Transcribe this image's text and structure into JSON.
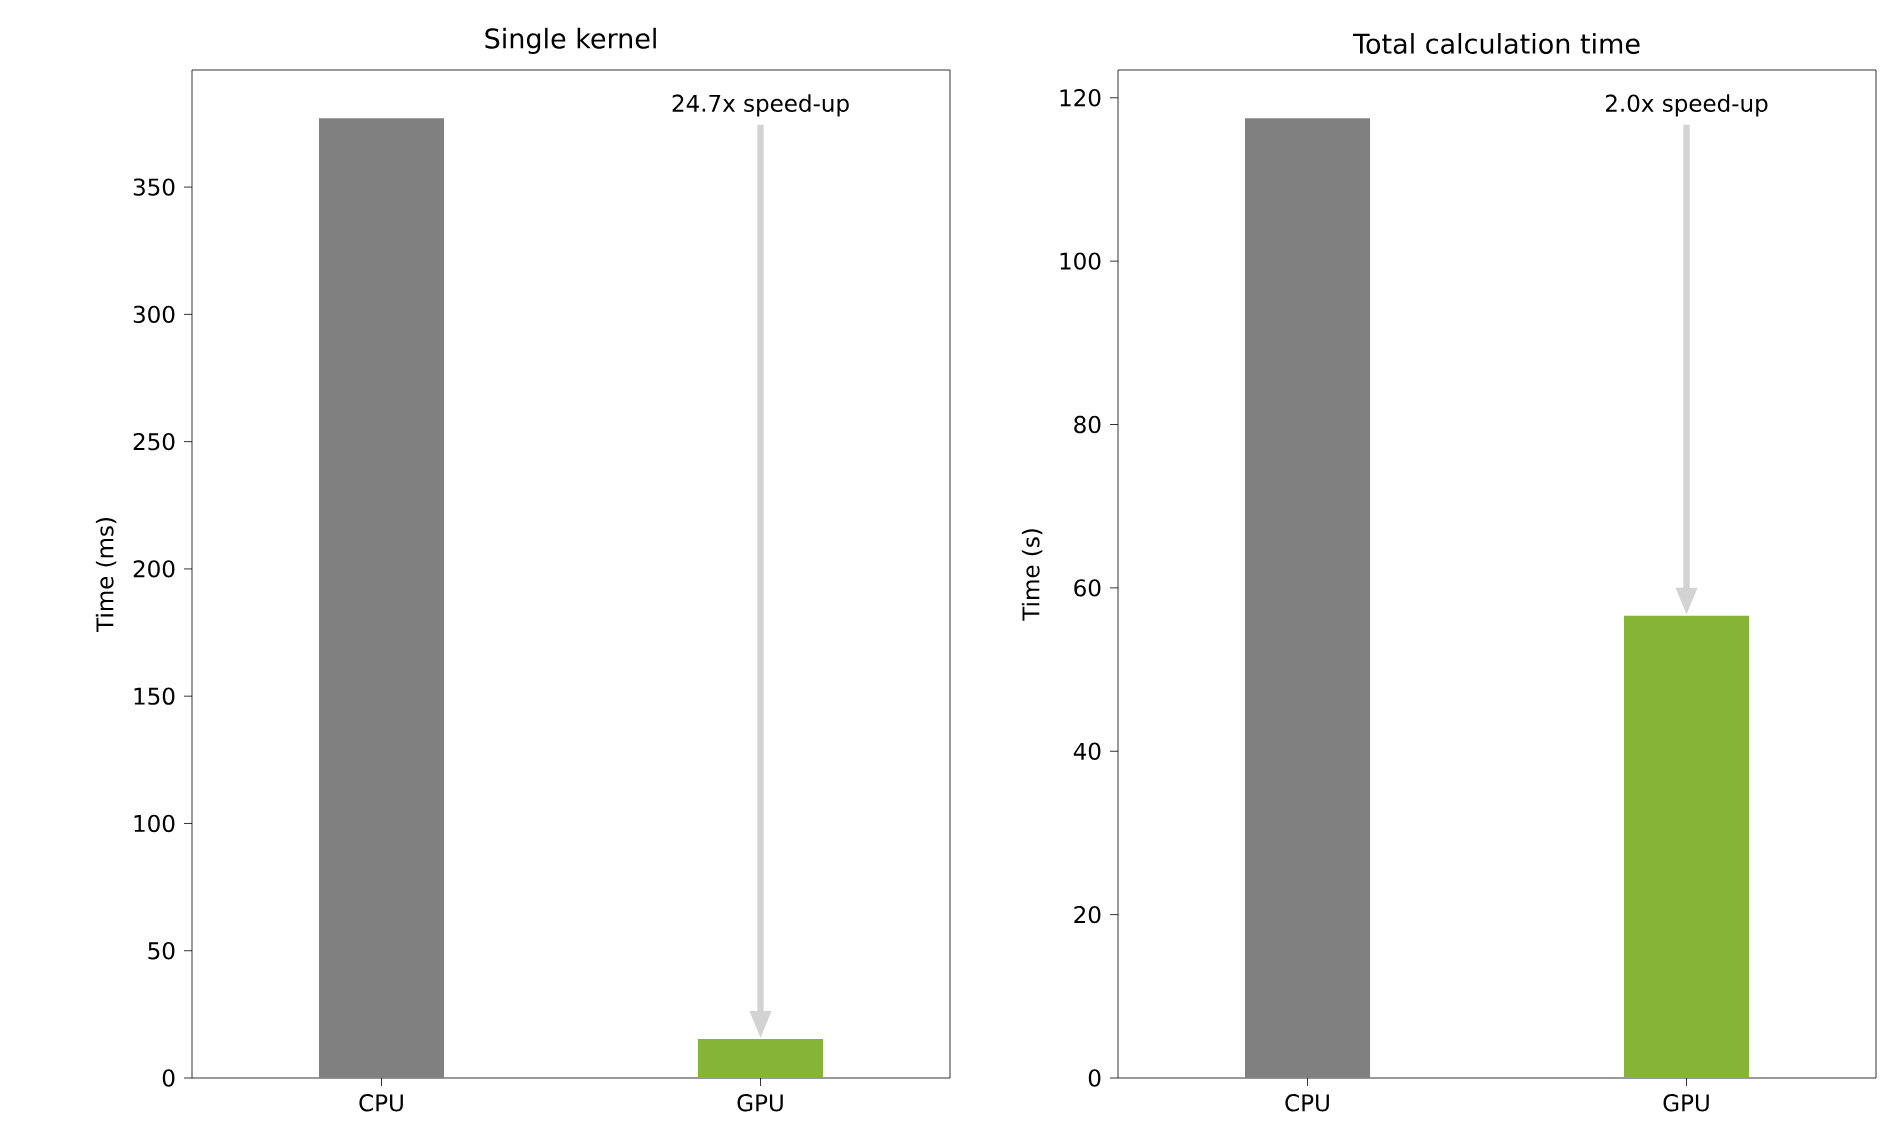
{
  "chart_data": [
    {
      "type": "bar",
      "title": "Single kernel",
      "ylabel": "Time (ms)",
      "categories": [
        "CPU",
        "GPU"
      ],
      "values": [
        377,
        15.3
      ],
      "colors": [
        "#808080",
        "#85b437"
      ],
      "ylim": [
        0,
        396
      ],
      "yticks": [
        0,
        50,
        100,
        150,
        200,
        250,
        300,
        350
      ],
      "annotations": [
        "24.7x speed-up"
      ]
    },
    {
      "type": "bar",
      "title": "Total calculation time",
      "ylabel": "Time (s)",
      "categories": [
        "CPU",
        "GPU"
      ],
      "values": [
        117.5,
        56.6
      ],
      "colors": [
        "#808080",
        "#85b437"
      ],
      "ylim": [
        0,
        123.4
      ],
      "yticks": [
        0,
        20,
        40,
        60,
        80,
        100,
        120
      ],
      "annotations": [
        "2.0x speed-up"
      ]
    }
  ]
}
